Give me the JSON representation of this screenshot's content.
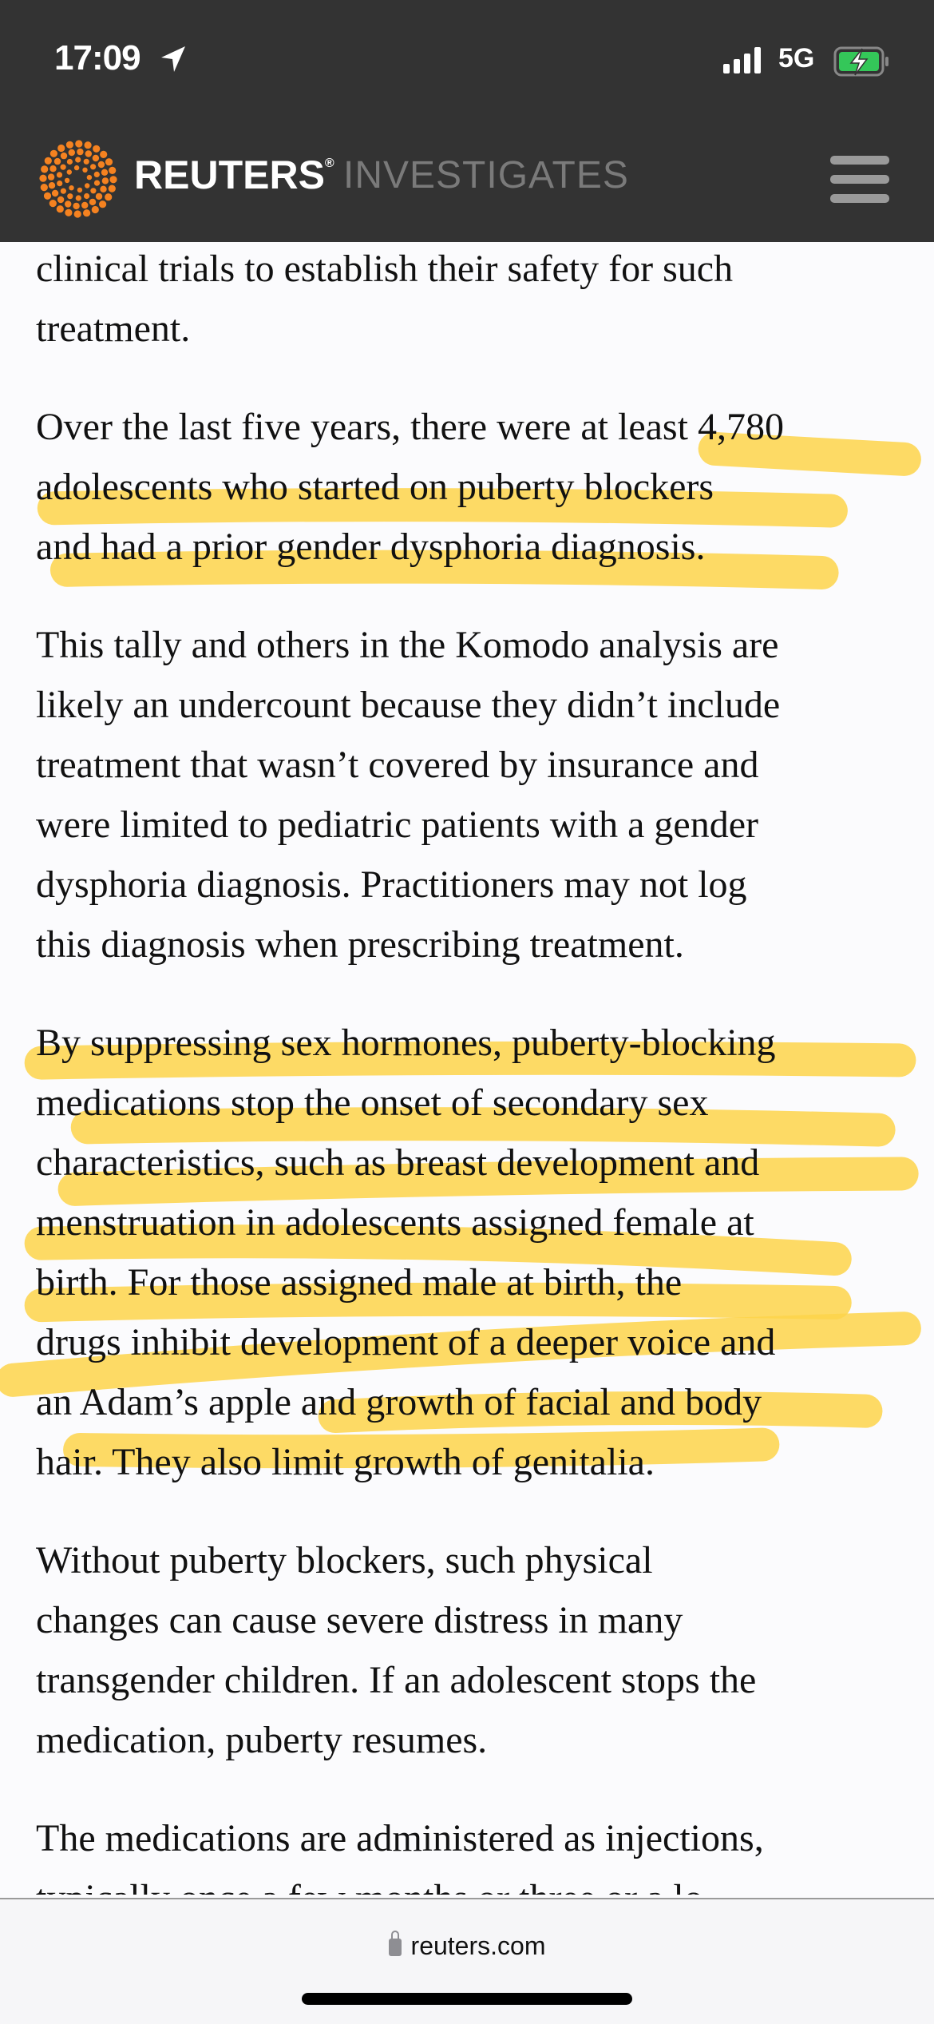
{
  "status_bar": {
    "time": "17:09",
    "network": "5G",
    "battery_color": "#34c759"
  },
  "header": {
    "brand": "REUTERS",
    "registered": "®",
    "section": "INVESTIGATES",
    "brand_color": "#f58220",
    "menu_icon": "hamburger-icon"
  },
  "highlight_color": "#fdd34a",
  "article": {
    "paragraphs": [
      {
        "lines": [
          "clinical trials to establish their safety for such",
          "treatment."
        ]
      },
      {
        "lines": [
          "Over the last five years, there were at least 4,780",
          "adolescents who started on puberty blockers",
          "and had a prior gender dysphoria diagnosis."
        ]
      },
      {
        "lines": [
          "This tally and others in the Komodo analysis are",
          "likely an undercount because they didn’t include",
          "treatment that wasn’t covered by insurance and",
          "were limited to pediatric patients with a gender",
          "dysphoria diagnosis. Practitioners may not log",
          "this diagnosis when prescribing treatment."
        ]
      },
      {
        "lines": [
          "By suppressing sex hormones, puberty-blocking",
          "medications stop the onset of secondary sex",
          "characteristics, such as breast development and",
          "menstruation in adolescents assigned female at",
          "birth. For those assigned male at birth, the",
          "drugs inhibit development of a deeper voice and",
          "an Adam’s apple and growth of facial and body",
          "hair. They also limit growth of genitalia."
        ]
      },
      {
        "lines": [
          "Without puberty blockers, such physical",
          "changes can cause severe distress in many",
          "transgender children. If an adolescent stops the",
          "medication, puberty resumes."
        ]
      },
      {
        "lines": [
          "The medications are administered as injections,",
          "typically once a few months or three or a lo..."
        ]
      }
    ]
  },
  "browser": {
    "url": "reuters.com"
  }
}
